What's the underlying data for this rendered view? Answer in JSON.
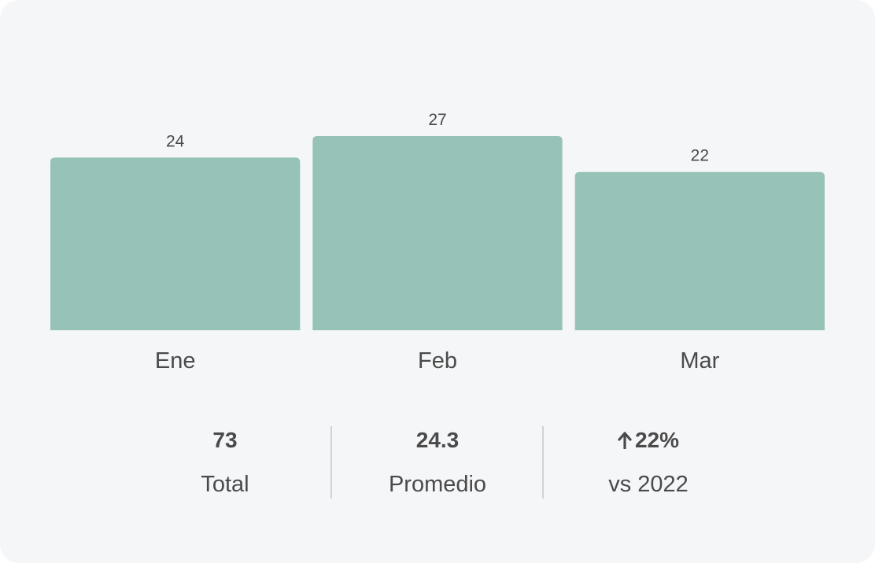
{
  "chart_data": {
    "type": "bar",
    "categories": [
      "Ene",
      "Feb",
      "Mar"
    ],
    "values": [
      24,
      27,
      22
    ],
    "data_labels": [
      "24",
      "27",
      "22"
    ],
    "ylim": [
      0,
      30
    ],
    "grid": false,
    "colors": {
      "bar": "#96c2b8",
      "text": "#4a4a4a"
    }
  },
  "stats": [
    {
      "value": "73",
      "label": "Total",
      "icon": ""
    },
    {
      "value": "24.3",
      "label": "Promedio",
      "icon": ""
    },
    {
      "value": "22%",
      "label": "vs 2022",
      "icon": "arrow-up-icon"
    }
  ]
}
